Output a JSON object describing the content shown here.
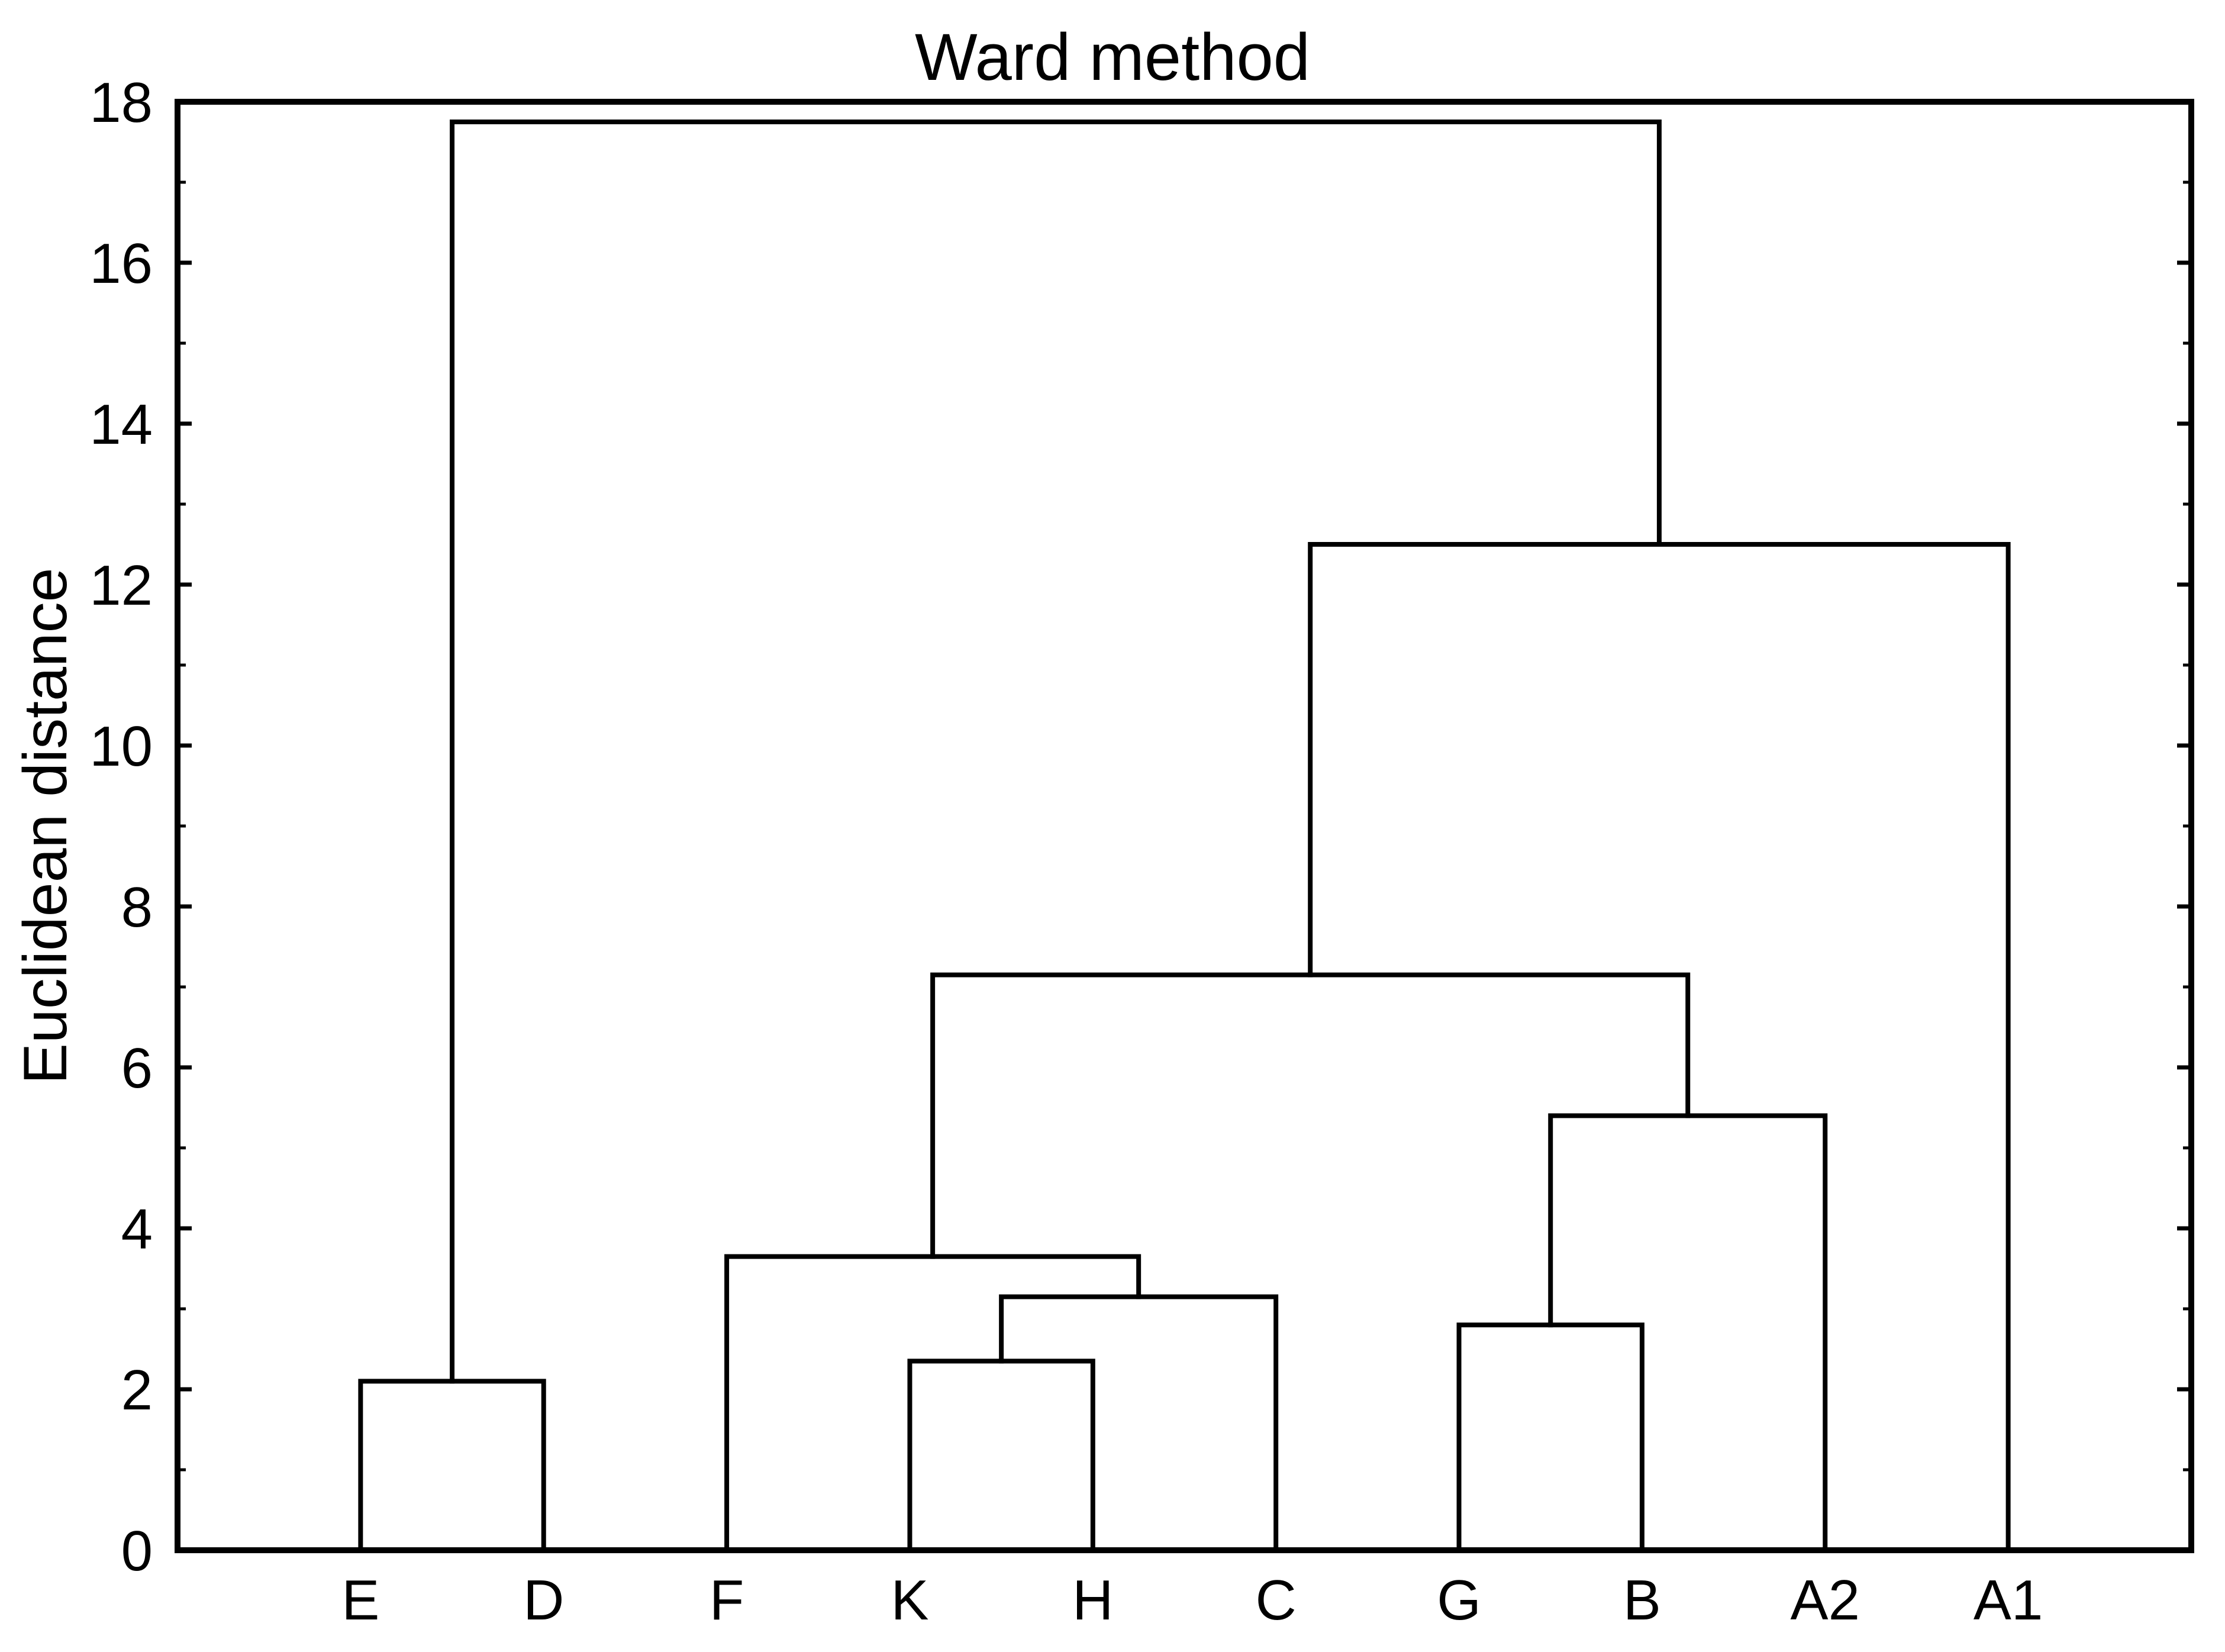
{
  "chart_data": {
    "type": "dendrogram",
    "title": "Ward method",
    "ylabel": "Euclidean distance",
    "xlabel": "",
    "background": "#ffffff",
    "line_color": "#000000",
    "frame": true,
    "grid": false,
    "legend": "none",
    "ylim": [
      0,
      18
    ],
    "y_major_ticks": [
      0,
      2,
      4,
      6,
      8,
      10,
      12,
      14,
      16,
      18
    ],
    "y_major_tick_labels": [
      "0",
      "2",
      "4",
      "6",
      "8",
      "10",
      "12",
      "14",
      "16",
      "18"
    ],
    "y_minor_ticks": [
      1,
      3,
      5,
      7,
      9,
      11,
      13,
      15,
      17
    ],
    "leaves": [
      "E",
      "D",
      "F",
      "K",
      "H",
      "C",
      "G",
      "B",
      "A2",
      "A1"
    ],
    "merges": [
      {
        "id": "ED",
        "left": "E",
        "right": "D",
        "height": 2.1
      },
      {
        "id": "KH",
        "left": "K",
        "right": "H",
        "height": 2.35
      },
      {
        "id": "KHC",
        "left": "KH",
        "right": "C",
        "height": 3.15
      },
      {
        "id": "FKHC",
        "left": "F",
        "right": "KHC",
        "height": 3.65
      },
      {
        "id": "GB",
        "left": "G",
        "right": "B",
        "height": 2.8
      },
      {
        "id": "GBA2",
        "left": "GB",
        "right": "A2",
        "height": 5.4
      },
      {
        "id": "MID",
        "left": "FKHC",
        "right": "GBA2",
        "height": 7.15
      },
      {
        "id": "MIDA1",
        "left": "MID",
        "right": "A1",
        "height": 12.5
      },
      {
        "id": "ROOT",
        "left": "ED",
        "right": "MIDA1",
        "height": 17.75
      }
    ]
  }
}
